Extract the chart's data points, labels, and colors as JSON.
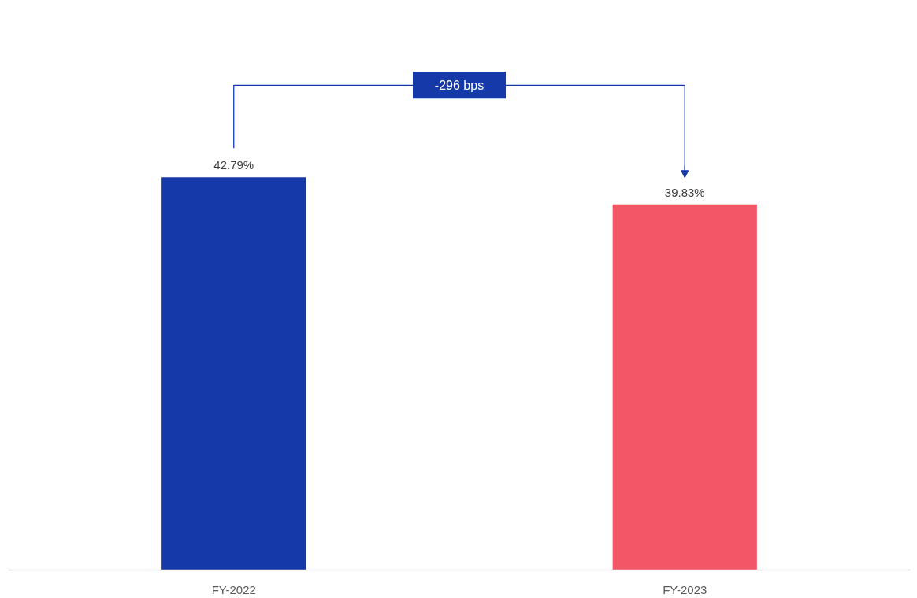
{
  "chart_data": {
    "type": "bar",
    "categories": [
      "FY-2022",
      "FY-2023"
    ],
    "values": [
      42.79,
      39.83
    ],
    "colors": [
      "#1539a9",
      "#f35666"
    ],
    "value_labels": [
      "42.79%",
      "39.83%"
    ],
    "annotations": [
      "-296 bps"
    ],
    "tick_labels": "x"
  }
}
